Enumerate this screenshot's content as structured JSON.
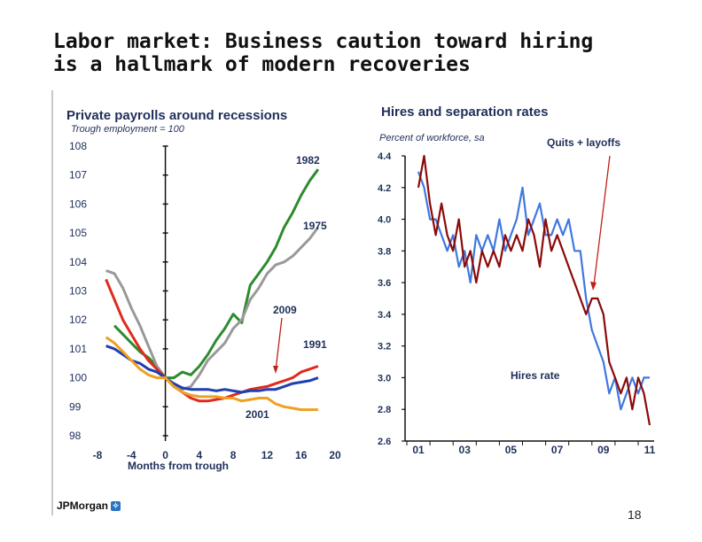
{
  "slide": {
    "title_line1": "Labor market: Business caution toward hiring",
    "title_line2": "is a hallmark of modern recoveries",
    "logo_text": "JPMorgan",
    "page_number": "18"
  },
  "chart_data": [
    {
      "type": "line",
      "title": "Private payrolls around recessions",
      "subtitle": "Trough employment = 100",
      "xlabel": "Months from trough",
      "ylabel": "",
      "xlim": [
        -8,
        20
      ],
      "ylim": [
        98,
        108
      ],
      "xticks": [
        "-8",
        "-4",
        "0",
        "4",
        "8",
        "12",
        "16",
        "20"
      ],
      "yticks": [
        "98",
        "99",
        "100",
        "101",
        "102",
        "103",
        "104",
        "105",
        "106",
        "107",
        "108"
      ],
      "grid": false,
      "series": [
        {
          "name": "1982",
          "color": "#2e8b2e",
          "x": [
            -6,
            -5,
            -4,
            -3,
            -2,
            -1,
            0,
            1,
            2,
            3,
            4,
            5,
            6,
            7,
            8,
            9,
            10,
            11,
            12,
            13,
            14,
            15,
            16,
            17,
            18
          ],
          "y": [
            101.8,
            101.5,
            101.2,
            100.9,
            100.7,
            100.4,
            100.0,
            100.0,
            100.2,
            100.1,
            100.4,
            100.8,
            101.3,
            101.7,
            102.2,
            101.9,
            103.2,
            103.6,
            104.0,
            104.5,
            105.2,
            105.7,
            106.3,
            106.8,
            107.2
          ]
        },
        {
          "name": "1975",
          "color": "#999999",
          "x": [
            -7,
            -6,
            -5,
            -4,
            -3,
            -2,
            -1,
            0,
            1,
            2,
            3,
            4,
            5,
            6,
            7,
            8,
            9,
            10,
            11,
            12,
            13,
            14,
            15,
            16,
            17,
            18
          ],
          "y": [
            103.7,
            103.6,
            103.1,
            102.4,
            101.8,
            101.1,
            100.4,
            100.0,
            99.7,
            99.6,
            99.7,
            100.1,
            100.6,
            100.9,
            101.2,
            101.7,
            102.0,
            102.7,
            103.1,
            103.6,
            103.9,
            104.0,
            104.2,
            104.5,
            104.8,
            105.2
          ]
        },
        {
          "name": "2009",
          "color": "#e02a1e",
          "x": [
            -7,
            -6,
            -5,
            -4,
            -3,
            -2,
            -1,
            0,
            1,
            2,
            3,
            4,
            5,
            6,
            7,
            8,
            9,
            10,
            11,
            12,
            13,
            14,
            15,
            16,
            17,
            18
          ],
          "y": [
            103.4,
            102.7,
            102.0,
            101.5,
            101.0,
            100.6,
            100.3,
            100.0,
            99.7,
            99.5,
            99.3,
            99.2,
            99.2,
            99.25,
            99.3,
            99.4,
            99.5,
            99.6,
            99.65,
            99.7,
            99.8,
            99.9,
            100.0,
            100.2,
            100.3,
            100.4
          ]
        },
        {
          "name": "1991",
          "color": "#1f3fb0",
          "x": [
            -7,
            -6,
            -5,
            -4,
            -3,
            -2,
            -1,
            0,
            1,
            2,
            3,
            4,
            5,
            6,
            7,
            8,
            9,
            10,
            11,
            12,
            13,
            14,
            15,
            16,
            17,
            18
          ],
          "y": [
            101.1,
            101.0,
            100.8,
            100.6,
            100.5,
            100.3,
            100.2,
            100.0,
            99.8,
            99.65,
            99.6,
            99.6,
            99.6,
            99.55,
            99.6,
            99.55,
            99.5,
            99.55,
            99.55,
            99.6,
            99.6,
            99.7,
            99.8,
            99.85,
            99.9,
            100.0
          ]
        },
        {
          "name": "2001",
          "color": "#f0a020",
          "x": [
            -7,
            -6,
            -5,
            -4,
            -3,
            -2,
            -1,
            0,
            1,
            2,
            3,
            4,
            5,
            6,
            7,
            8,
            9,
            10,
            11,
            12,
            13,
            14,
            15,
            16,
            17,
            18
          ],
          "y": [
            101.4,
            101.2,
            100.9,
            100.6,
            100.3,
            100.1,
            100.0,
            100.0,
            99.7,
            99.5,
            99.4,
            99.35,
            99.35,
            99.35,
            99.3,
            99.3,
            99.2,
            99.25,
            99.3,
            99.3,
            99.1,
            99.0,
            98.95,
            98.9,
            98.9,
            98.9
          ]
        }
      ]
    },
    {
      "type": "line",
      "title": "Hires and separation rates",
      "subtitle": "Percent of workforce, sa",
      "xlabel": "",
      "ylabel": "",
      "ylim": [
        2.6,
        4.4
      ],
      "xticks": [
        "01",
        "03",
        "05",
        "07",
        "09",
        "11"
      ],
      "yticks": [
        "2.6",
        "2.8",
        "3.0",
        "3.2",
        "3.4",
        "3.6",
        "3.8",
        "4.0",
        "4.2",
        "4.4"
      ],
      "grid": false,
      "annotations": [
        "Quits + layoffs",
        "Hires rate"
      ],
      "series": [
        {
          "name": "Hires rate",
          "color": "#3f78e0",
          "x": [
            2001.0,
            2001.25,
            2001.5,
            2001.75,
            2002.0,
            2002.25,
            2002.5,
            2002.75,
            2003.0,
            2003.25,
            2003.5,
            2003.75,
            2004.0,
            2004.25,
            2004.5,
            2004.75,
            2005.0,
            2005.25,
            2005.5,
            2005.75,
            2006.0,
            2006.25,
            2006.5,
            2006.75,
            2007.0,
            2007.25,
            2007.5,
            2007.75,
            2008.0,
            2008.25,
            2008.5,
            2008.75,
            2009.0,
            2009.25,
            2009.5,
            2009.75,
            2010.0,
            2010.25,
            2010.5,
            2010.75,
            2011.0
          ],
          "y": [
            4.3,
            4.2,
            4.0,
            4.0,
            3.9,
            3.8,
            3.9,
            3.7,
            3.8,
            3.6,
            3.9,
            3.8,
            3.9,
            3.8,
            4.0,
            3.8,
            3.9,
            4.0,
            4.2,
            3.9,
            4.0,
            4.1,
            3.9,
            3.9,
            4.0,
            3.9,
            4.0,
            3.8,
            3.8,
            3.5,
            3.3,
            3.2,
            3.1,
            2.9,
            3.0,
            2.8,
            2.9,
            3.0,
            2.9,
            3.0,
            3.0
          ]
        },
        {
          "name": "Quits + layoffs",
          "color": "#8b0a0a",
          "x": [
            2001.0,
            2001.25,
            2001.5,
            2001.75,
            2002.0,
            2002.25,
            2002.5,
            2002.75,
            2003.0,
            2003.25,
            2003.5,
            2003.75,
            2004.0,
            2004.25,
            2004.5,
            2004.75,
            2005.0,
            2005.25,
            2005.5,
            2005.75,
            2006.0,
            2006.25,
            2006.5,
            2006.75,
            2007.0,
            2007.25,
            2007.5,
            2007.75,
            2008.0,
            2008.25,
            2008.5,
            2008.75,
            2009.0,
            2009.25,
            2009.5,
            2009.75,
            2010.0,
            2010.25,
            2010.5,
            2010.75,
            2011.0
          ],
          "y": [
            4.2,
            4.4,
            4.1,
            3.9,
            4.1,
            3.9,
            3.8,
            4.0,
            3.7,
            3.8,
            3.6,
            3.8,
            3.7,
            3.8,
            3.7,
            3.9,
            3.8,
            3.9,
            3.8,
            4.0,
            3.9,
            3.7,
            4.0,
            3.8,
            3.9,
            3.8,
            3.7,
            3.6,
            3.5,
            3.4,
            3.5,
            3.5,
            3.4,
            3.1,
            3.0,
            2.9,
            3.0,
            2.8,
            3.0,
            2.9,
            2.7
          ]
        }
      ]
    }
  ]
}
